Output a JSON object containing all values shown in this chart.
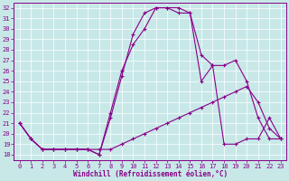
{
  "xlabel": "Windchill (Refroidissement éolien,°C)",
  "bg_color": "#c8e8e8",
  "line_color": "#880088",
  "grid_color": "#ffffff",
  "xlim": [
    -0.5,
    23.5
  ],
  "ylim": [
    17.5,
    32.5
  ],
  "xticks": [
    0,
    1,
    2,
    3,
    4,
    5,
    6,
    7,
    8,
    9,
    10,
    11,
    12,
    13,
    14,
    15,
    16,
    17,
    18,
    19,
    20,
    21,
    22,
    23
  ],
  "yticks": [
    18,
    19,
    20,
    21,
    22,
    23,
    24,
    25,
    26,
    27,
    28,
    29,
    30,
    31,
    32
  ],
  "line1_x": [
    0,
    1,
    2,
    3,
    4,
    5,
    6,
    7,
    8,
    9,
    10,
    11,
    12,
    13,
    14,
    15,
    16,
    17,
    18,
    19,
    20,
    21,
    22,
    23
  ],
  "line1_y": [
    21.0,
    19.5,
    18.5,
    18.5,
    18.5,
    18.5,
    18.5,
    18.5,
    18.5,
    19.0,
    19.5,
    20.0,
    20.5,
    21.0,
    21.5,
    22.0,
    22.5,
    23.0,
    23.5,
    24.0,
    24.5,
    23.0,
    20.5,
    19.5
  ],
  "line2_x": [
    0,
    1,
    2,
    3,
    4,
    5,
    6,
    7,
    8,
    9,
    10,
    11,
    12,
    13,
    14,
    15,
    16,
    17,
    18,
    19,
    20,
    21,
    22,
    23
  ],
  "line2_y": [
    21.0,
    19.5,
    18.5,
    18.5,
    18.5,
    18.5,
    18.5,
    18.0,
    22.0,
    26.0,
    28.5,
    30.0,
    32.0,
    32.0,
    31.5,
    31.5,
    27.5,
    26.5,
    26.5,
    27.0,
    25.0,
    21.5,
    19.5,
    19.5
  ],
  "line3_x": [
    0,
    1,
    2,
    3,
    4,
    5,
    6,
    7,
    8,
    9,
    10,
    11,
    12,
    13,
    14,
    15,
    16,
    17,
    18,
    19,
    20,
    21,
    22,
    23
  ],
  "line3_y": [
    21.0,
    19.5,
    18.5,
    18.5,
    18.5,
    18.5,
    18.5,
    18.0,
    21.5,
    25.5,
    29.5,
    31.5,
    32.0,
    32.0,
    32.0,
    31.5,
    25.0,
    26.5,
    19.0,
    19.0,
    19.5,
    19.5,
    21.5,
    19.5
  ]
}
